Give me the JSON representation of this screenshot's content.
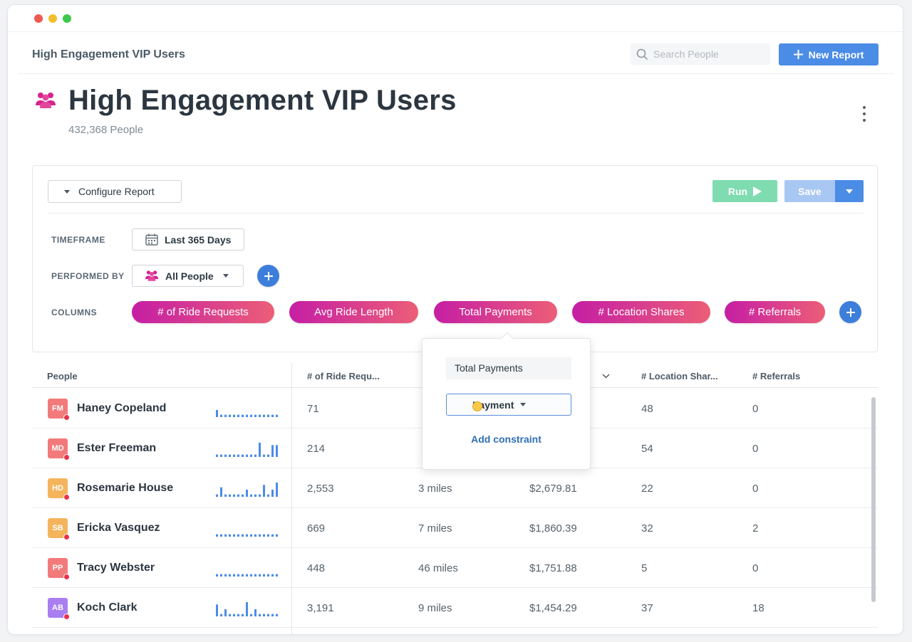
{
  "topbar": {
    "breadcrumb": "High Engagement VIP Users",
    "search_placeholder": "Search People",
    "new_report_label": "New Report"
  },
  "header": {
    "title": "High Engagement VIP Users",
    "subtitle": "432,368 People"
  },
  "config": {
    "configure_label": "Configure Report",
    "run_label": "Run",
    "save_label": "Save",
    "timeframe_label": "TIMEFRAME",
    "timeframe_value": "Last 365 Days",
    "performed_by_label": "PERFORMED BY",
    "performed_by_value": "All People",
    "columns_label": "COLUMNS",
    "columns": [
      "# of Ride Requests",
      "Avg Ride Length",
      "Total Payments",
      "# Location Shares",
      "# Referrals"
    ]
  },
  "popup": {
    "field_value": "Total Payments",
    "select_value": "Payment",
    "add_constraint": "Add constraint"
  },
  "table": {
    "headers": [
      "People",
      "# of Ride Requ...",
      "# Location Shar...",
      "# Referrals"
    ],
    "rows": [
      {
        "initials": "FM",
        "color": "#f27a7a",
        "name": "Haney Copeland",
        "rides": "71",
        "avg": "",
        "payments": "",
        "shares": "48",
        "referrals": "0",
        "spark": [
          3,
          1,
          1,
          1,
          1,
          1,
          1,
          1,
          1,
          1,
          1,
          1,
          1,
          1,
          1
        ]
      },
      {
        "initials": "MD",
        "color": "#f27a7a",
        "name": "Ester Freeman",
        "rides": "214",
        "avg": "",
        "payments": "",
        "shares": "54",
        "referrals": "0",
        "spark": [
          1,
          1,
          1,
          1,
          1,
          1,
          1,
          1,
          1,
          1,
          6,
          1,
          1,
          5,
          5
        ]
      },
      {
        "initials": "HD",
        "color": "#f4b45c",
        "name": "Rosemarie House",
        "rides": "2,553",
        "avg": "3 miles",
        "payments": "$2,679.81",
        "shares": "22",
        "referrals": "0",
        "spark": [
          1,
          4,
          1,
          1,
          1,
          1,
          1,
          3,
          1,
          1,
          1,
          5,
          1,
          3,
          6
        ]
      },
      {
        "initials": "SB",
        "color": "#f4b45c",
        "name": "Ericka Vasquez",
        "rides": "669",
        "avg": "7 miles",
        "payments": "$1,860.39",
        "shares": "32",
        "referrals": "2",
        "spark": [
          1,
          1,
          1,
          1,
          1,
          1,
          1,
          1,
          1,
          1,
          1,
          1,
          1,
          1,
          1
        ]
      },
      {
        "initials": "PP",
        "color": "#f27a7a",
        "name": "Tracy Webster",
        "rides": "448",
        "avg": "46 miles",
        "payments": "$1,751.88",
        "shares": "5",
        "referrals": "0",
        "spark": [
          1,
          1,
          1,
          1,
          1,
          1,
          1,
          1,
          1,
          1,
          1,
          1,
          1,
          1,
          1
        ]
      },
      {
        "initials": "AB",
        "color": "#a97ef0",
        "name": "Koch Clark",
        "rides": "3,191",
        "avg": "9 miles",
        "payments": "$1,454.29",
        "shares": "37",
        "referrals": "18",
        "spark": [
          5,
          1,
          3,
          1,
          1,
          1,
          1,
          6,
          1,
          3,
          1,
          1,
          1,
          1,
          1
        ]
      }
    ]
  },
  "colors": {
    "accent": "#4b8ce6",
    "run": "#7fdcb0",
    "pill_start": "#c51ea4",
    "pill_end": "#ec5e78",
    "spark": "#4b8ce6"
  }
}
